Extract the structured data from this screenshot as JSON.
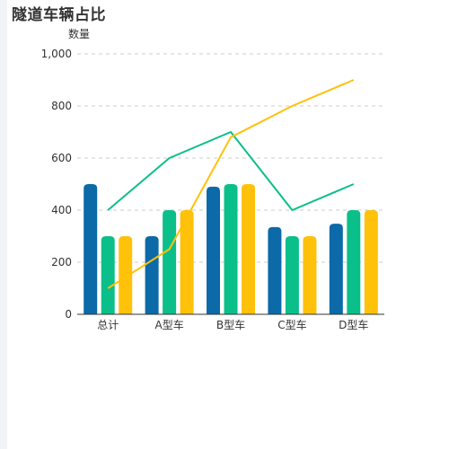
{
  "title": "隧道车辆占比",
  "chart_data": {
    "type": "bar",
    "title": "隧道车辆占比",
    "ylabel": "数量",
    "xlabel": "",
    "categories": [
      "总计",
      "A型车",
      "B型车",
      "C型车",
      "D型车"
    ],
    "ylim": [
      0,
      1000
    ],
    "yticks": [
      0,
      200,
      400,
      600,
      800,
      1000
    ],
    "ytick_labels": [
      "0",
      "200",
      "400",
      "600",
      "800",
      "1,000"
    ],
    "grid": "horizontal dashed",
    "legend": "none",
    "series": [
      {
        "type": "bar",
        "color": "#0b6aa7",
        "values": [
          500,
          300,
          490,
          335,
          348
        ]
      },
      {
        "type": "bar",
        "color": "#0bbf8a",
        "values": [
          300,
          400,
          500,
          300,
          400
        ]
      },
      {
        "type": "bar",
        "color": "#ffc10a",
        "values": [
          300,
          400,
          500,
          300,
          400
        ]
      },
      {
        "type": "line",
        "color": "#0bbf8a",
        "values": [
          400,
          600,
          700,
          400,
          500
        ]
      },
      {
        "type": "line",
        "color": "#ffc10a",
        "values": [
          100,
          250,
          680,
          800,
          900
        ]
      }
    ]
  }
}
